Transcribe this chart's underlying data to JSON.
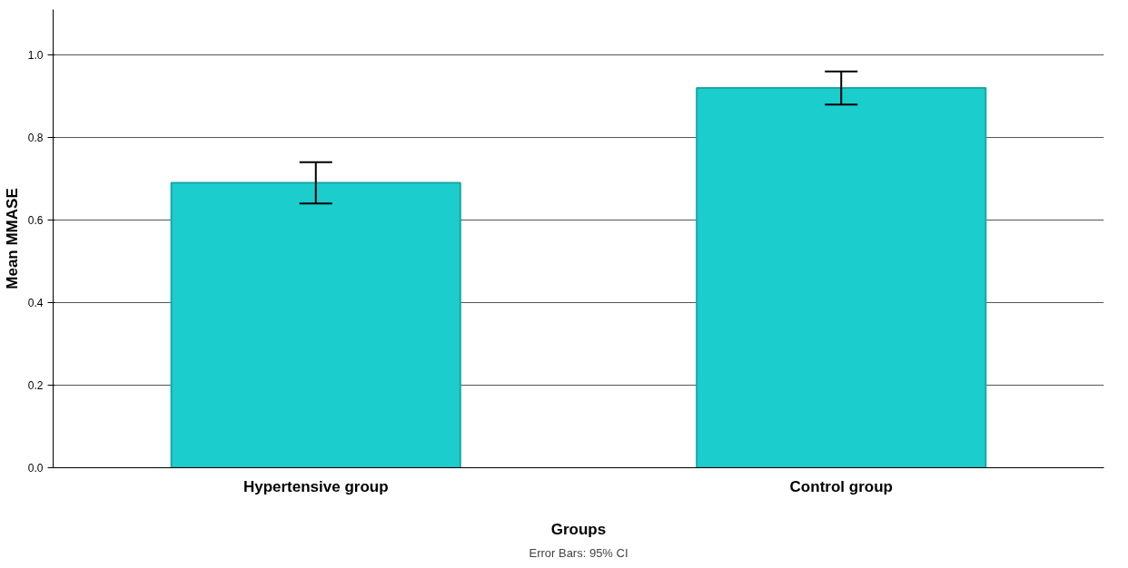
{
  "chart_data": {
    "type": "bar",
    "categories": [
      "Hypertensive group",
      "Control group"
    ],
    "values": [
      0.69,
      0.92
    ],
    "color": "#1ccdcd",
    "errors": [
      [
        0.64,
        0.74
      ],
      [
        0.88,
        0.96
      ]
    ],
    "xlabel": "Groups",
    "ylabel": "Mean MMASE",
    "ylim": [
      0,
      1.11
    ],
    "yticks": [
      {
        "value": 0,
        "label": "0.0"
      },
      {
        "value": 0.2,
        "label": "0.2"
      },
      {
        "value": 0.4,
        "label": "0.4"
      },
      {
        "value": 0.6,
        "label": "0.6"
      },
      {
        "value": 0.8,
        "label": "0.8"
      },
      {
        "value": 1.0,
        "label": "1.0"
      }
    ],
    "grid": "y",
    "annotations": [
      "Error Bars: 95% CI"
    ]
  }
}
